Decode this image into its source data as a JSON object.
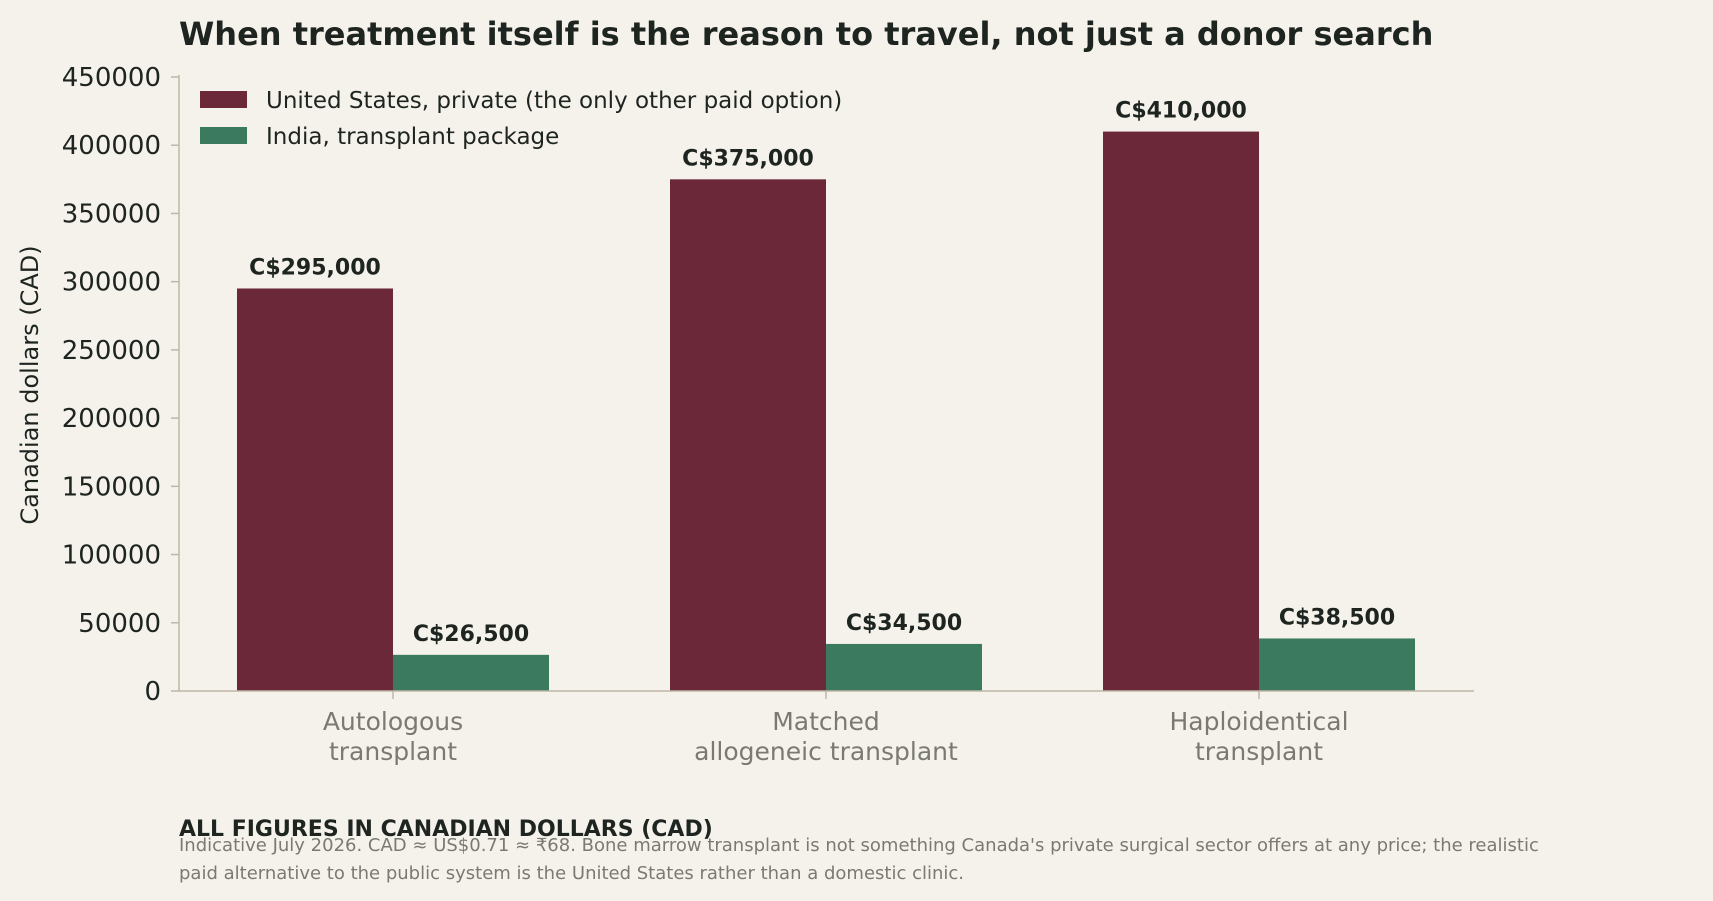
{
  "chart_data": {
    "type": "bar",
    "title": "When treatment itself is the reason to travel, not just a donor search",
    "ylabel": "Canadian dollars (CAD)",
    "xlabel": "",
    "ylim": [
      0,
      450000
    ],
    "yticks": [
      0,
      50000,
      100000,
      150000,
      200000,
      250000,
      300000,
      350000,
      400000,
      450000
    ],
    "categories": [
      [
        "Autologous",
        "transplant"
      ],
      [
        "Matched",
        "allogeneic transplant"
      ],
      [
        "Haploidentical",
        "transplant"
      ]
    ],
    "series": [
      {
        "name": "United States, private (the only other paid option)",
        "color": "#6b2839",
        "values": [
          295000,
          375000,
          410000
        ],
        "labels": [
          "C$295,000",
          "C$375,000",
          "C$410,000"
        ]
      },
      {
        "name": "India, transplant package",
        "color": "#3b7a5e",
        "values": [
          26500,
          34500,
          38500
        ],
        "labels": [
          "C$26,500",
          "C$34,500",
          "C$38,500"
        ]
      }
    ],
    "legend_position": "top-left",
    "grid": false
  },
  "footer": {
    "heading": "ALL FIGURES IN CANADIAN DOLLARS (CAD)",
    "note_lines": [
      "Indicative July 2026. CAD ≈ US$0.71 ≈ ₹68. Bone marrow transplant is not something Canada's private surgical sector offers at any price; the realistic",
      "paid alternative to the public system is the United States rather than a domestic clinic."
    ]
  },
  "colors": {
    "background": "#f5f2eb",
    "axis": "#bdb8a6",
    "text": "#1e2420",
    "muted": "#7a7a72"
  }
}
